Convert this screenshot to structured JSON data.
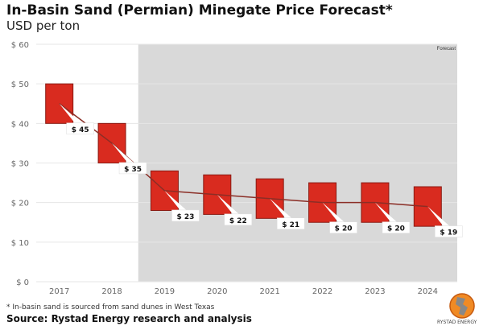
{
  "chart_data": {
    "type": "bar",
    "title": "In-Basin Sand (Permian) Minegate Price Forecast*",
    "subtitle": "USD per ton",
    "categories": [
      "2017",
      "2018",
      "2019",
      "2020",
      "2021",
      "2022",
      "2023",
      "2024"
    ],
    "ranges": [
      [
        40,
        50
      ],
      [
        30,
        40
      ],
      [
        18,
        28
      ],
      [
        17,
        27
      ],
      [
        16,
        26
      ],
      [
        15,
        25
      ],
      [
        15,
        25
      ],
      [
        14,
        24
      ]
    ],
    "series": [
      {
        "values": [
          45,
          35,
          23,
          22,
          21,
          20,
          20,
          19
        ]
      }
    ],
    "data_labels": [
      "$ 45",
      "$ 35",
      "$ 23",
      "$ 22",
      "$ 21",
      "$ 20",
      "$ 20",
      "$ 19"
    ],
    "ylim": [
      0,
      60
    ],
    "yticks": [
      0,
      10,
      20,
      30,
      40,
      50,
      60
    ],
    "ytick_labels": [
      "$ 0",
      "$ 10",
      "$ 20",
      "$ 30",
      "$ 40",
      "$ 50",
      "$ 60"
    ],
    "grid": true,
    "forecast_region": {
      "from": "2019",
      "to": "2024",
      "label": "Forecast",
      "color": "#d9d9d9"
    },
    "colors": {
      "bar": "#d92b1f",
      "bar_border": "#8a1a12",
      "line": "#8b2e26"
    }
  },
  "footnote": "* In-basin sand is sourced from sand dunes in West Texas",
  "source": "Source: Rystad Energy research and analysis",
  "logo_text": "RYSTAD ENERGY"
}
